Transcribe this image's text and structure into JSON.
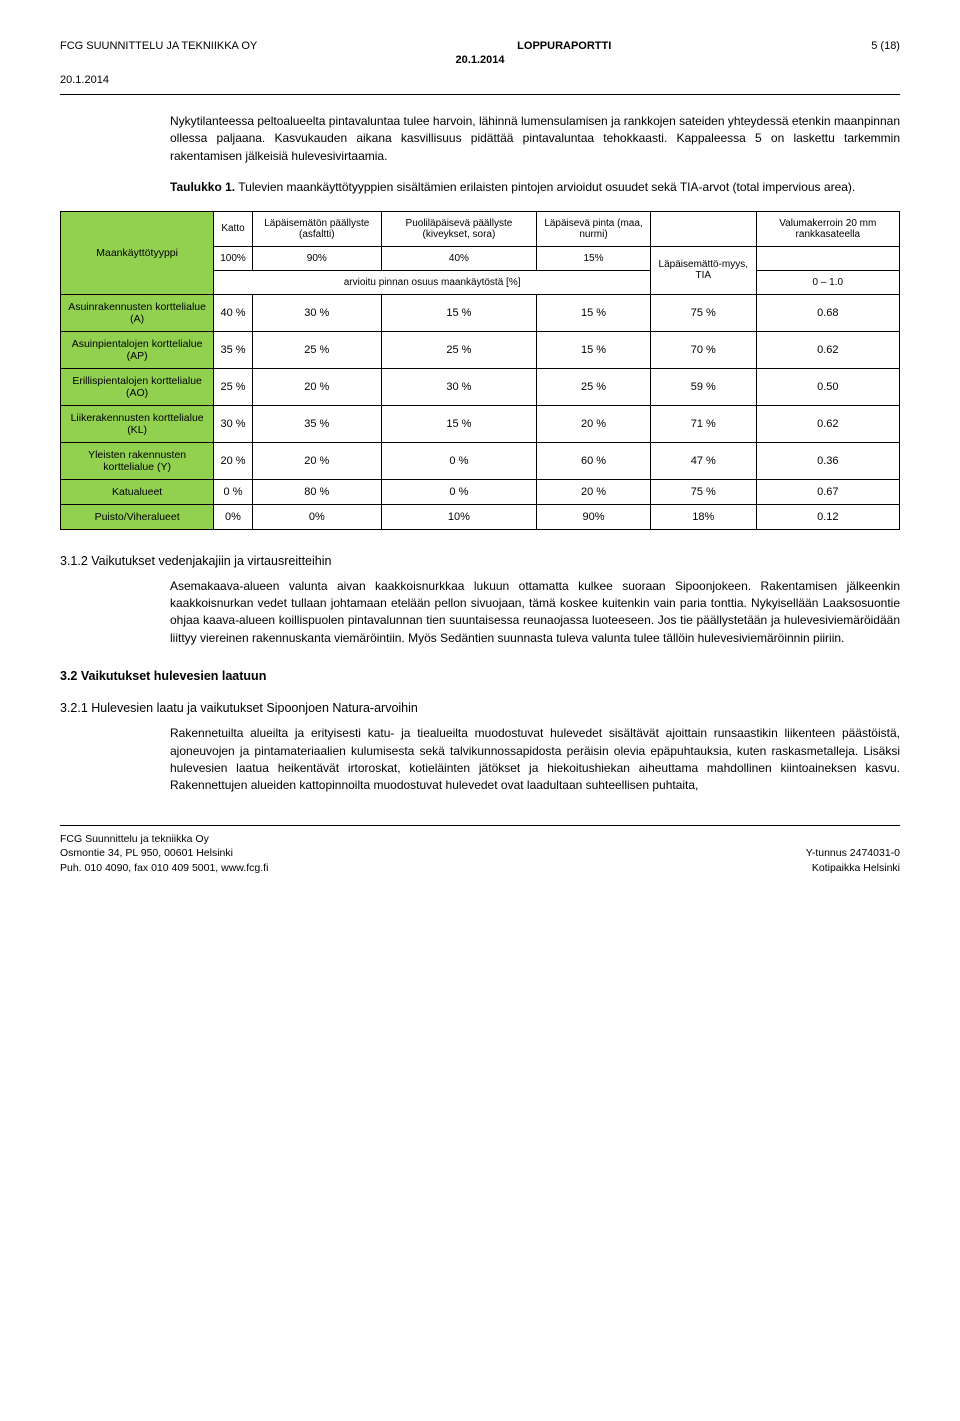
{
  "header": {
    "left": "FCG SUUNNITTELU JA TEKNIIKKA OY",
    "center": "LOPPURAPORTTI",
    "right": "5 (18)",
    "date": "20.1.2014",
    "date_left": "20.1.2014"
  },
  "para1": "Nykytilanteessa peltoalueelta pintavaluntaa tulee harvoin, lähinnä lumensulamisen ja rankkojen sateiden yhteydessä etenkin maanpinnan ollessa paljaana. Kasvukauden aikana kasvillisuus pidättää pintavaluntaa tehokkaasti. Kappaleessa 5 on laskettu tarkemmin rakentamisen jälkeisiä hulevesivirtaamia.",
  "para2": "Taulukko 1. Tulevien maankäyttötyyppien sisältämien erilaisten pintojen arvioidut osuudet sekä TIA-arvot (total impervious area).",
  "table": {
    "corner": "Maankäyttötyyppi",
    "col_headers": [
      "Katto",
      "Läpäisemätön päällyste (asfaltti)",
      "Puoliläpäisevä päällyste (kiveykset, sora)",
      "Läpäisevä pinta (maa, nurmi)",
      "",
      "Valumakerroin 20 mm rankkasateella"
    ],
    "pct_row": [
      "100%",
      "90%",
      "40%",
      "15%",
      "Läpäisemättö-myys, TIA",
      ""
    ],
    "note_row": "arvioitu pinnan osuus maankäytöstä [%]",
    "note_right": "0 – 1.0",
    "rows": [
      {
        "label": "Asuinrakennusten korttelialue (A)",
        "cells": [
          "40 %",
          "30 %",
          "15 %",
          "15 %",
          "75 %",
          "0.68"
        ]
      },
      {
        "label": "Asuinpientalojen korttelialue (AP)",
        "cells": [
          "35 %",
          "25 %",
          "25 %",
          "15 %",
          "70 %",
          "0.62"
        ]
      },
      {
        "label": "Erillispientalojen korttelialue (AO)",
        "cells": [
          "25 %",
          "20 %",
          "30 %",
          "25 %",
          "59 %",
          "0.50"
        ]
      },
      {
        "label": "Liikerakennusten korttelialue (KL)",
        "cells": [
          "30 %",
          "35 %",
          "15 %",
          "20 %",
          "71 %",
          "0.62"
        ]
      },
      {
        "label": "Yleisten rakennusten korttelialue (Y)",
        "cells": [
          "20 %",
          "20 %",
          "0 %",
          "60 %",
          "47 %",
          "0.36"
        ]
      },
      {
        "label": "Katualueet",
        "cells": [
          "0 %",
          "80 %",
          "0 %",
          "20 %",
          "75 %",
          "0.67"
        ]
      },
      {
        "label": "Puisto/Viheralueet",
        "cells": [
          "0%",
          "0%",
          "10%",
          "90%",
          "18%",
          "0.12"
        ]
      }
    ]
  },
  "section312": "3.1.2  Vaikutukset vedenjakajiin ja virtausreitteihin",
  "para3": "Asemakaava-alueen valunta aivan kaakkoisnurkkaa lukuun ottamatta kulkee suoraan Sipoonjokeen. Rakentamisen jälkeenkin kaakkoisnurkan vedet tullaan johtamaan etelään pellon sivuojaan, tämä koskee kuitenkin vain paria tonttia. Nykyisellään Laaksosuontie ohjaa kaava-alueen koillispuolen pintavalunnan tien suuntaisessa reunaojassa luoteeseen. Jos tie päällystetään ja hulevesiviemäröidään liittyy viereinen rakennuskanta viemäröintiin. Myös Sedäntien suunnasta tuleva valunta tulee tällöin hulevesiviemäröinnin piiriin.",
  "section32": "3.2  Vaikutukset hulevesien laatuun",
  "section321": "3.2.1  Hulevesien laatu ja  vaikutukset Sipoonjoen Natura-arvoihin",
  "para4": "Rakennetuilta alueilta ja erityisesti katu- ja tiealueilta muodostuvat hulevedet sisältävät ajoittain runsaastikin liikenteen päästöistä, ajoneuvojen ja pintamateriaalien kulumisesta sekä talvikunnossapidosta peräisin olevia epäpuhtauksia, kuten raskasmetalleja. Lisäksi hulevesien laatua heikentävät irtoroskat, kotieläinten jätökset ja hiekoitushiekan aiheuttama mahdollinen kiintoaineksen kasvu. Rakennettujen alueiden kattopinnoilta muodostuvat hulevedet ovat laadultaan suhteellisen puhtaita,",
  "footer": {
    "left1": "FCG Suunnittelu ja tekniikka Oy",
    "left2": "Osmontie 34, PL 950, 00601 Helsinki",
    "left3": "Puh. 010 4090, fax 010 409 5001, www.fcg.fi",
    "right1": "Y-tunnus 2474031-0",
    "right2": "Kotipaikka Helsinki"
  }
}
